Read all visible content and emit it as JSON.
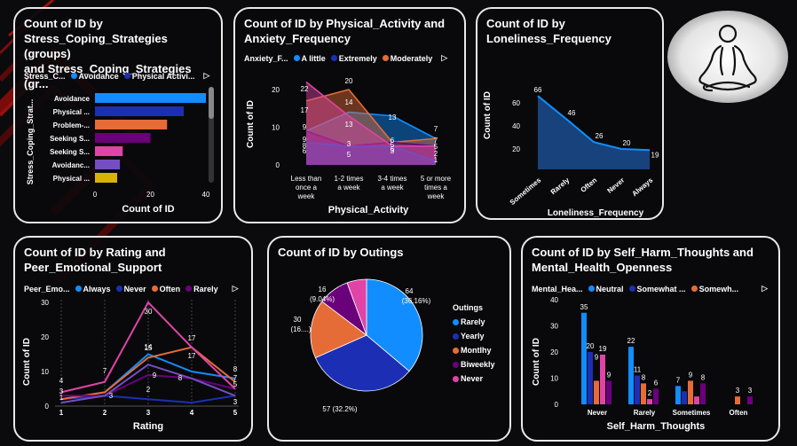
{
  "colors": {
    "blue": "#118dff",
    "navy": "#1c2fb4",
    "orange": "#e66c37",
    "purple": "#6b007b",
    "pink": "#e044a7",
    "violet": "#744ec2",
    "yellow": "#d9b300",
    "area": "#1a4c8f"
  },
  "card1": {
    "title": "Count of ID by\nStress_Coping_Strategies (groups)\nand Stress_Coping_Strategies (gr...",
    "legend_title": "Stress_C...",
    "legend": [
      "Avoidance",
      "Physical Activi..."
    ],
    "ylabel": "Stress_Coping_Strat...",
    "xlabel": "Count of ID",
    "ticks": [
      "0",
      "20",
      "40"
    ],
    "bars": [
      {
        "label": "Avoidance",
        "value": 40,
        "color": "#118dff"
      },
      {
        "label": "Physical ...",
        "value": 32,
        "color": "#1c2fb4"
      },
      {
        "label": "Problem-...",
        "value": 26,
        "color": "#e66c37"
      },
      {
        "label": "Seeking S...",
        "value": 20,
        "color": "#6b007b"
      },
      {
        "label": "Seeking S...",
        "value": 10,
        "color": "#e044a7"
      },
      {
        "label": "Avoidanc...",
        "value": 9,
        "color": "#744ec2"
      },
      {
        "label": "Physical ...",
        "value": 8,
        "color": "#d9b300"
      }
    ]
  },
  "card2": {
    "title": "Count of ID by Physical_Activity and\nAnxiety_Frequency",
    "legend_title": "Anxiety_F...",
    "legend": [
      "A little",
      "Extremely",
      "Moderately"
    ],
    "ylabel": "Count of ID",
    "xlabel": "Physical_Activity",
    "yticks": [
      "0",
      "10",
      "20"
    ],
    "categories": [
      "Less than once a week",
      "1-2 times a week",
      "3-4 times a week",
      "5 or more times a week"
    ],
    "series": [
      {
        "values": [
          9,
          14,
          13,
          7
        ],
        "color": "#118dff"
      },
      {
        "values": [
          8,
          3,
          3,
          2
        ],
        "color": "#1c2fb4"
      },
      {
        "values": [
          17,
          20,
          6,
          7
        ],
        "color": "#e66c37"
      },
      {
        "values": [
          9,
          5,
          6,
          5
        ],
        "color": "#6b007b"
      },
      {
        "values": [
          22,
          13,
          5,
          5
        ],
        "color": "#e044a7"
      },
      {
        "values": [
          6,
          5,
          5,
          1
        ],
        "color": "#744ec2"
      }
    ],
    "labels": [
      "22",
      "17",
      "20",
      "14",
      "13",
      "13",
      "9",
      "9",
      "8",
      "6",
      "7",
      "7",
      "5",
      "6",
      "5",
      "5",
      "5",
      "3",
      "3",
      "2",
      "1"
    ]
  },
  "card3": {
    "title": "Count of ID by\nLoneliness_Frequency",
    "ylabel": "Count of ID",
    "xlabel": "Loneliness_Frequency",
    "yticks": [
      "20",
      "40",
      "60"
    ],
    "categories": [
      "Sometimes",
      "Rarely",
      "Often",
      "Never",
      "Always"
    ],
    "values": [
      66,
      46,
      26,
      20,
      19
    ]
  },
  "card4": {
    "title": "Count of ID by Rating and\nPeer_Emotional_Support",
    "legend_title": "Peer_Emo...",
    "legend": [
      "Always",
      "Never",
      "Often",
      "Rarely"
    ],
    "ylabel": "Count of ID",
    "xlabel": "Rating",
    "yticks": [
      "0",
      "10",
      "20",
      "30"
    ],
    "categories": [
      "1",
      "2",
      "3",
      "4",
      "5"
    ],
    "series": [
      {
        "values": [
          2,
          4,
          15,
          10,
          8
        ],
        "color": "#118dff"
      },
      {
        "values": [
          2,
          3,
          2,
          1,
          3
        ],
        "color": "#1c2fb4"
      },
      {
        "values": [
          2,
          4,
          14,
          17,
          7
        ],
        "color": "#e66c37"
      },
      {
        "values": [
          3,
          3,
          9,
          8,
          5
        ],
        "color": "#6b007b"
      },
      {
        "values": [
          4,
          7,
          30,
          17,
          5
        ],
        "color": "#e044a7"
      },
      {
        "values": [
          1,
          3,
          12,
          8,
          3
        ],
        "color": "#744ec2"
      }
    ],
    "labels": [
      "30",
      "17",
      "17",
      "15",
      "14",
      "9",
      "8",
      "8",
      "7",
      "7",
      "5",
      "4",
      "3",
      "3",
      "3",
      "2",
      "1"
    ]
  },
  "card5": {
    "title": "Count of ID by Outings",
    "legend_title": "Outings",
    "legend": [
      "Rarely",
      "Yearly",
      "Montlhy",
      "Biweekly",
      "Never"
    ],
    "slices": [
      {
        "label": "Rarely",
        "value": 64,
        "pct": "(36.16%)",
        "color": "#118dff"
      },
      {
        "label": "Yearly",
        "value": 57,
        "pct": "(32.2%)",
        "color": "#1c2fb4"
      },
      {
        "label": "Montlhy",
        "value": 30,
        "pct": "(16....)",
        "color": "#e66c37"
      },
      {
        "label": "Biweekly",
        "value": 16,
        "pct": "(9.04%)",
        "color": "#6b007b"
      },
      {
        "label": "Never",
        "value": 10,
        "pct": "",
        "color": "#e044a7"
      }
    ],
    "slice_labels": [
      "64",
      "(36.16%)",
      "57 (32.2%)",
      "30",
      "(16....)",
      "16",
      "(9.04%)"
    ]
  },
  "card6": {
    "title": "Count of ID by Self_Harm_Thoughts and\nMental_Health_Openness",
    "legend_title": "Mental_Hea...",
    "legend": [
      "Neutral",
      "Somewhat ...",
      "Somewh..."
    ],
    "ylabel": "Count of ID",
    "xlabel": "Self_Harm_Thoughts",
    "yticks": [
      "0",
      "10",
      "20",
      "30",
      "40"
    ],
    "categories": [
      "Never",
      "Rarely",
      "Sometimes",
      "Often"
    ],
    "groups": [
      [
        35,
        20,
        9,
        19,
        9
      ],
      [
        22,
        11,
        8,
        2,
        6
      ],
      [
        7,
        5,
        9,
        3,
        8
      ],
      [
        0,
        0,
        3,
        0,
        3
      ]
    ],
    "colors": [
      "#118dff",
      "#1c2fb4",
      "#e66c37",
      "#e044a7",
      "#6b007b"
    ],
    "labels": [
      [
        "35",
        "20",
        "9",
        "19",
        "9"
      ],
      [
        "22",
        "11",
        "8",
        "2",
        "6"
      ],
      [
        "7",
        "",
        "9",
        "",
        "8"
      ],
      [
        "",
        "",
        "3",
        "",
        "3"
      ]
    ]
  }
}
